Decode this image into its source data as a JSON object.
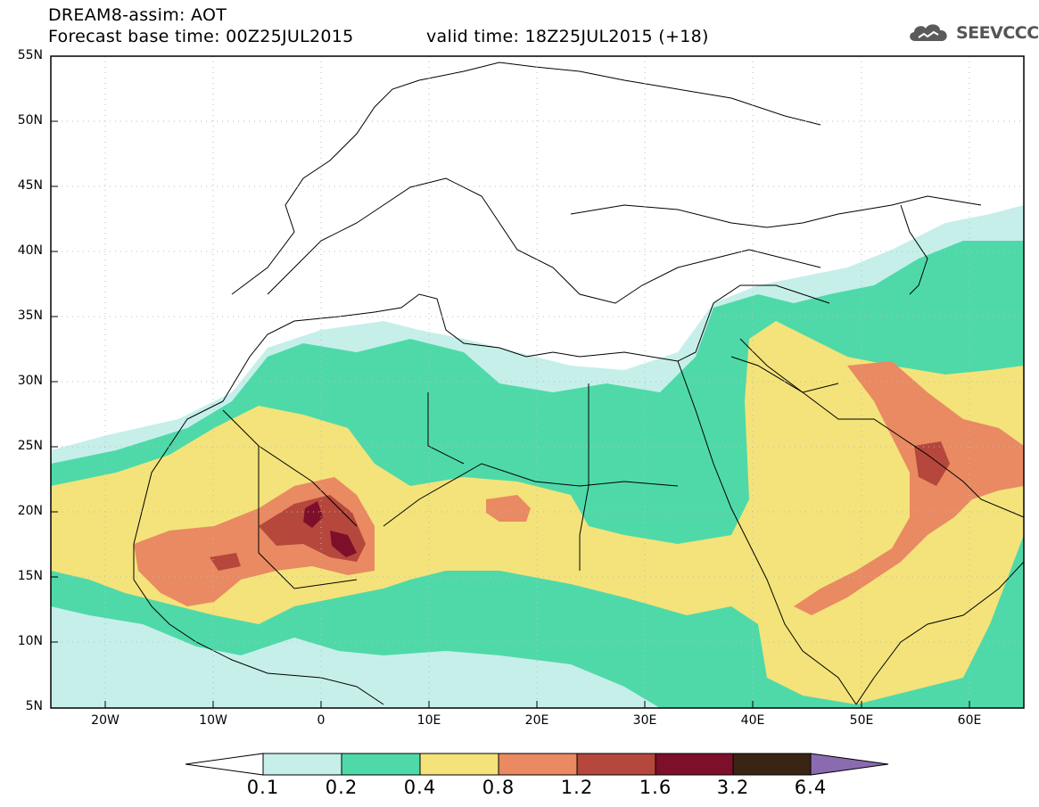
{
  "title": {
    "line1": "DREAM8-assim: AOT",
    "line2": "Forecast base time: 00Z25JUL2015",
    "valid": "valid time: 18Z25JUL2015 (+18)"
  },
  "logo": {
    "text": "SEEVCCC",
    "icon": "cloud-icon"
  },
  "axes": {
    "lat_labels": [
      "55N",
      "50N",
      "45N",
      "40N",
      "35N",
      "30N",
      "25N",
      "20N",
      "15N",
      "10N",
      "5N"
    ],
    "lon_labels": [
      "20W",
      "10W",
      "0",
      "10E",
      "20E",
      "30E",
      "40E",
      "50E",
      "60E"
    ],
    "lat_range": [
      5,
      55
    ],
    "lon_range": [
      -25,
      65
    ]
  },
  "colorbar": {
    "labels": [
      "0.1",
      "0.2",
      "0.4",
      "0.8",
      "1.2",
      "1.6",
      "3.2",
      "6.4"
    ],
    "colors": [
      "#ffffff",
      "#c6efea",
      "#4fd9a9",
      "#f3e37a",
      "#e98a62",
      "#b5473c",
      "#7e0f2b",
      "#3a2414",
      "#8b6bb0"
    ]
  }
}
